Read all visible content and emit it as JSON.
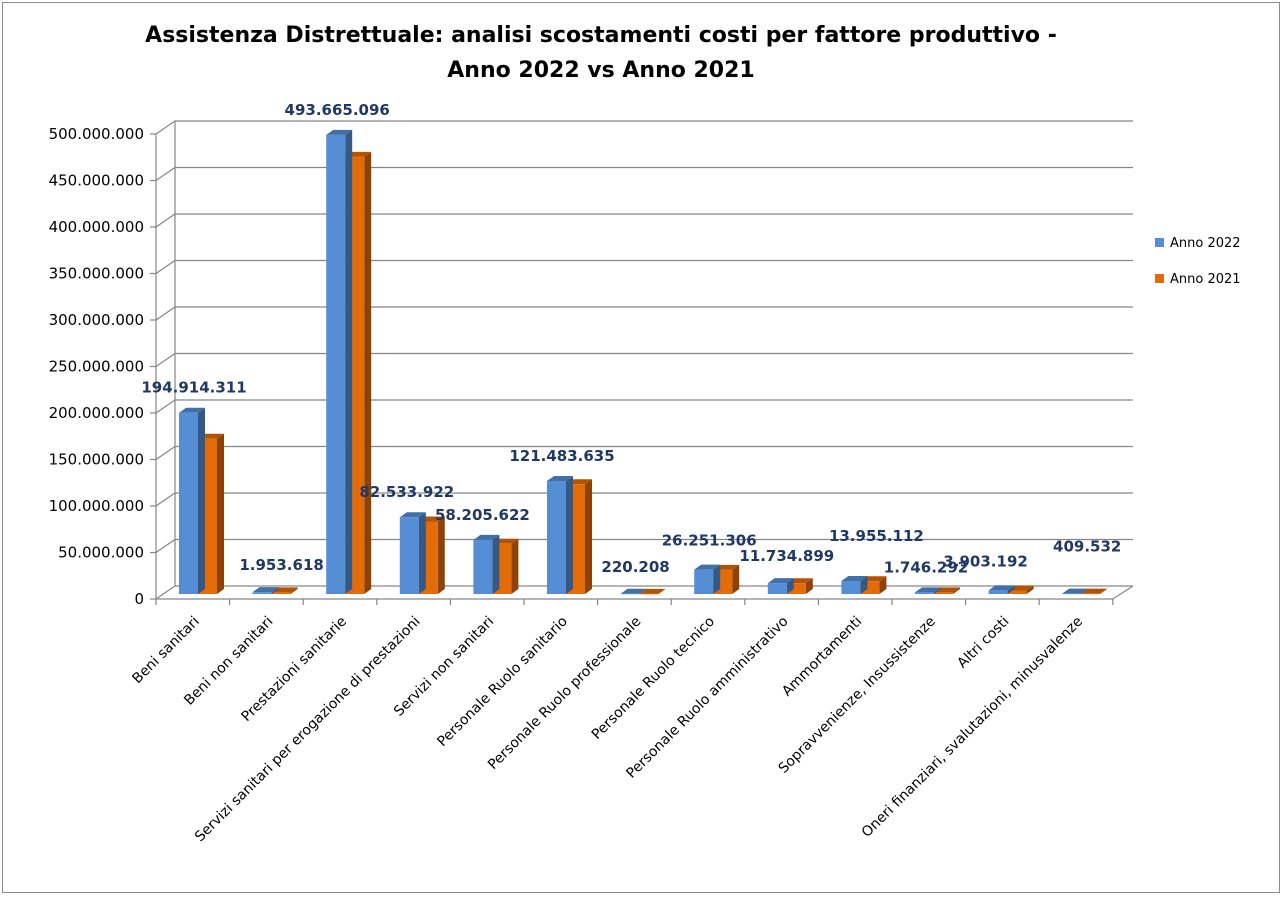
{
  "chart_data": {
    "type": "bar",
    "style": "3d-clustered-column",
    "title": [
      "Assistenza Distrettuale: analisi scostamenti costi per fattore produttivo -",
      "Anno 2022 vs Anno 2021"
    ],
    "xlabel": "",
    "ylabel": "",
    "ylim": [
      0,
      500000000
    ],
    "ytick_step": 50000000,
    "yticks": [
      "0",
      "50.000.000",
      "100.000.000",
      "150.000.000",
      "200.000.000",
      "250.000.000",
      "300.000.000",
      "350.000.000",
      "400.000.000",
      "450.000.000",
      "500.000.000"
    ],
    "grid": true,
    "legend_position": "right",
    "categories": [
      "Beni sanitari",
      "Beni non sanitari",
      "Prestazioni sanitarie",
      "Servizi sanitari per erogazione di prestazioni",
      "Servizi non sanitari",
      "Personale Ruolo sanitario",
      "Personale Ruolo professionale",
      "Personale Ruolo tecnico",
      "Personale Ruolo amministrativo",
      "Ammortamenti",
      "Sopravvenienze, Insussistenze",
      "Altri costi",
      "Oneri finanziari, svalutazioni, minusvalenze"
    ],
    "series": [
      {
        "name": "Anno 2022",
        "color": "#558ed5",
        "values": [
          194914311,
          1953618,
          493665096,
          82533922,
          58205622,
          121483635,
          220208,
          26251306,
          11734899,
          13955112,
          1746292,
          3903192,
          409532
        ]
      },
      {
        "name": "Anno 2021",
        "color": "#e36c09",
        "values": [
          167000000,
          1800000,
          470000000,
          78000000,
          54000000,
          118000000,
          200000,
          26000000,
          11500000,
          13700000,
          1700000,
          3800000,
          400000
        ]
      }
    ],
    "data_labels": [
      "194.914.311",
      "1.953.618",
      "493.665.096",
      "82.533.922",
      "58.205.622",
      "121.483.635",
      "220.208",
      "26.251.306",
      "11.734.899",
      "13.955.112",
      "1.746.292",
      "3.903.192",
      "409.532"
    ]
  }
}
